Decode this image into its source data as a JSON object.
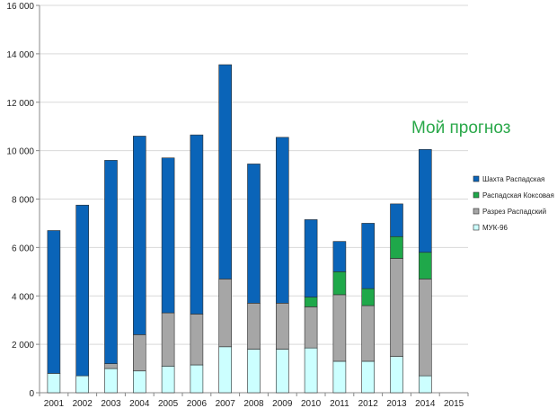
{
  "chart_data": {
    "type": "bar",
    "stacked": true,
    "categories": [
      "2001",
      "2002",
      "2003",
      "2004",
      "2005",
      "2006",
      "2007",
      "2008",
      "2009",
      "2010",
      "2011",
      "2012",
      "2013",
      "2014",
      "2015"
    ],
    "ylim": [
      0,
      16000
    ],
    "yticks": [
      0,
      2000,
      4000,
      6000,
      8000,
      10000,
      12000,
      14000,
      16000
    ],
    "ytick_labels": [
      "0",
      "2 000",
      "4 000",
      "6 000",
      "8 000",
      "10 000",
      "12 000",
      "14 000",
      "16 000"
    ],
    "grid": true,
    "legend_position": "right",
    "series": [
      {
        "name": "МУК-96",
        "color": "#ccffff",
        "values": [
          800,
          700,
          1000,
          900,
          1100,
          1150,
          1900,
          1800,
          1800,
          1850,
          1300,
          1300,
          1500,
          700,
          0
        ]
      },
      {
        "name": "Разрез Распадский",
        "color": "#a6a6a6",
        "values": [
          0,
          0,
          200,
          1500,
          2200,
          2100,
          2800,
          1900,
          1900,
          1700,
          2750,
          2300,
          4050,
          4000,
          0
        ]
      },
      {
        "name": "Распадская Коксовая",
        "color": "#1fa84a",
        "values": [
          0,
          0,
          0,
          0,
          0,
          0,
          0,
          0,
          0,
          400,
          950,
          700,
          900,
          1100,
          0
        ]
      },
      {
        "name": "Шахта Распадская",
        "color": "#0a64b8",
        "values": [
          5900,
          7050,
          8400,
          8200,
          6400,
          7400,
          8850,
          5750,
          6850,
          3200,
          1250,
          2700,
          1350,
          4250,
          0
        ]
      }
    ],
    "legend_order": [
      "Шахта Распадская",
      "Распадская Коксовая",
      "Разрез Распадский",
      "МУК-96"
    ],
    "annotation": {
      "text": "Мой прогноз",
      "color": "#2aa84a"
    }
  }
}
